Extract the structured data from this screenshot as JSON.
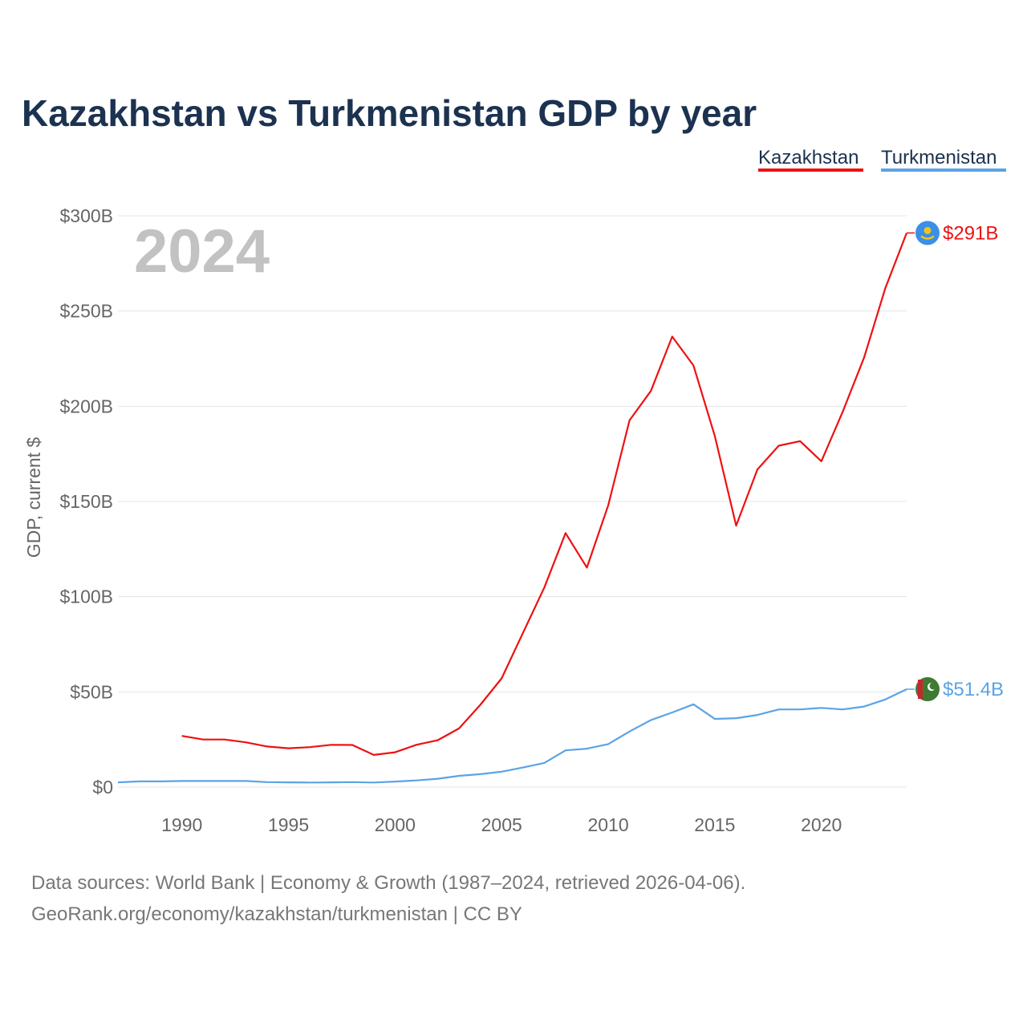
{
  "chart_data": {
    "type": "line",
    "title": "Kazakhstan vs Turkmenistan GDP by year",
    "ylabel": "GDP, current $",
    "xlabel": "",
    "year_display": "2024",
    "x_range": [
      1987,
      2024
    ],
    "ylim": [
      0,
      300
    ],
    "y_unit": "billion USD",
    "y_ticks": [
      0,
      50,
      100,
      150,
      200,
      250,
      300
    ],
    "y_tick_labels": [
      "$0",
      "$50B",
      "$100B",
      "$150B",
      "$200B",
      "$250B",
      "$300B"
    ],
    "x_ticks": [
      1990,
      1995,
      2000,
      2005,
      2010,
      2015,
      2020
    ],
    "x_tick_labels": [
      "1990",
      "1995",
      "2000",
      "2005",
      "2010",
      "2015",
      "2020"
    ],
    "grid": true,
    "legend_position": "top-right",
    "series": [
      {
        "name": "Kazakhstan",
        "color": "#ee1111",
        "end_label": "$291B",
        "flag_icon": "kazakhstan-flag-icon",
        "flag_colors": [
          "#3a8fe8",
          "#f2c21b"
        ],
        "x": [
          1990,
          1991,
          1992,
          1993,
          1994,
          1995,
          1996,
          1997,
          1998,
          1999,
          2000,
          2001,
          2002,
          2003,
          2004,
          2005,
          2006,
          2007,
          2008,
          2009,
          2010,
          2011,
          2012,
          2013,
          2014,
          2015,
          2016,
          2017,
          2018,
          2019,
          2020,
          2021,
          2022,
          2023,
          2024
        ],
        "values": [
          26.9,
          25.0,
          25.0,
          23.5,
          21.3,
          20.4,
          21.0,
          22.2,
          22.1,
          16.9,
          18.3,
          22.2,
          24.6,
          30.8,
          43.2,
          57.1,
          81.0,
          104.8,
          133.4,
          115.3,
          148.0,
          192.6,
          208.0,
          236.6,
          221.4,
          184.4,
          137.3,
          166.8,
          179.3,
          181.7,
          171.1,
          197.1,
          225.5,
          262.0,
          291.0
        ]
      },
      {
        "name": "Turkmenistan",
        "color": "#5ba3e6",
        "end_label": "$51.4B",
        "flag_icon": "turkmenistan-flag-icon",
        "flag_colors": [
          "#3f7a33",
          "#c7262e"
        ],
        "x": [
          1987,
          1988,
          1989,
          1990,
          1991,
          1992,
          1993,
          1994,
          1995,
          1996,
          1997,
          1998,
          1999,
          2000,
          2001,
          2002,
          2003,
          2004,
          2005,
          2006,
          2007,
          2008,
          2009,
          2010,
          2011,
          2012,
          2013,
          2014,
          2015,
          2016,
          2017,
          2018,
          2019,
          2020,
          2021,
          2022,
          2023,
          2024
        ],
        "values": [
          2.5,
          3.0,
          3.0,
          3.2,
          3.2,
          3.2,
          3.2,
          2.6,
          2.5,
          2.4,
          2.5,
          2.6,
          2.4,
          2.9,
          3.5,
          4.4,
          5.9,
          6.8,
          8.1,
          10.3,
          12.7,
          19.3,
          20.2,
          22.6,
          29.2,
          35.2,
          39.2,
          43.5,
          35.8,
          36.2,
          37.9,
          40.8,
          40.8,
          41.6,
          40.8,
          42.3,
          46.0,
          51.4
        ]
      }
    ]
  },
  "source": {
    "line1": "Data sources: World Bank | Economy & Growth (1987–2024, retrieved 2026-04-06).",
    "line2": "GeoRank.org/economy/kazakhstan/turkmenistan | CC BY"
  }
}
